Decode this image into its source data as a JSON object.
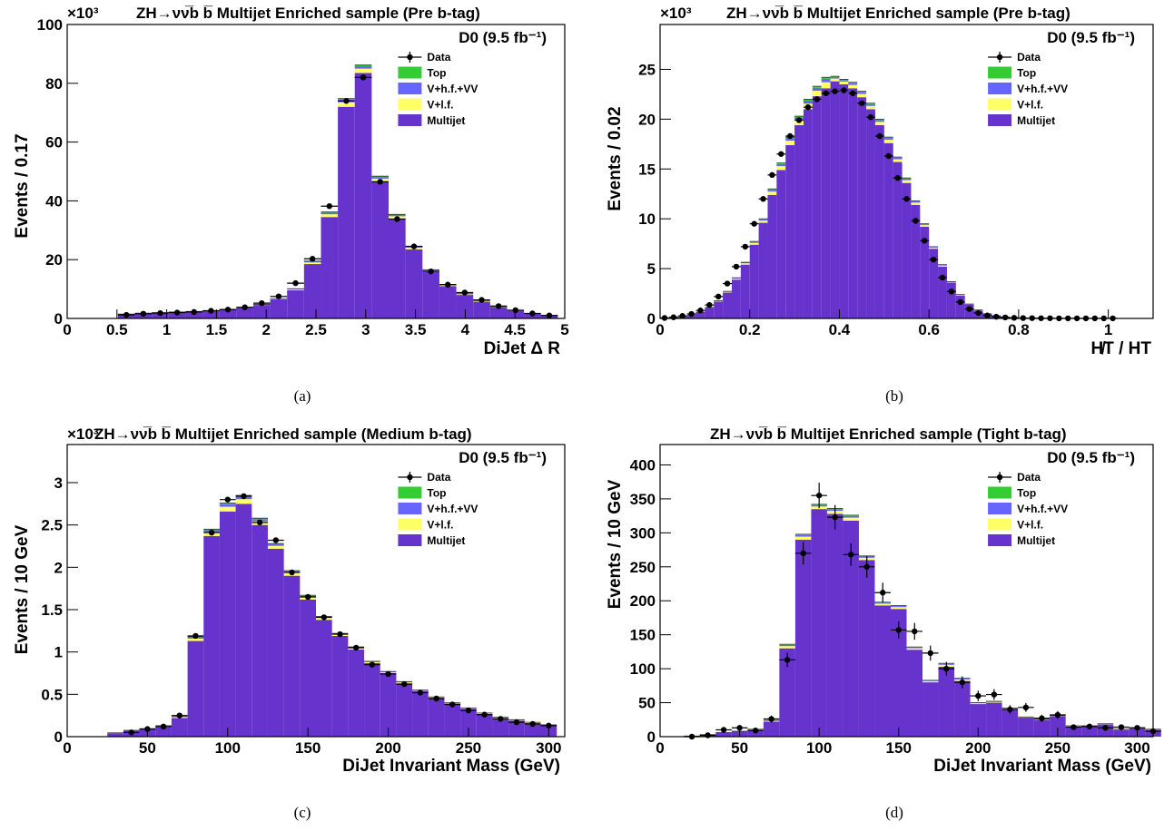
{
  "colors": {
    "multijet": "#6633cc",
    "vlf": "#ffff66",
    "vhfvv": "#6666ff",
    "top": "#33cc33",
    "data": "#000000"
  },
  "legend": [
    "Data",
    "Top",
    "V+h.f.+VV",
    "V+l.f.",
    "Multijet"
  ],
  "experiment": "D0 (9.5 fb⁻¹)",
  "chart_data": [
    {
      "type": "bar",
      "panel": "a",
      "caption": "(a)",
      "title": "ZH→νν̅b b̅ Multijet Enriched sample (Pre b-tag)",
      "xlabel": "DiJet Δ R",
      "ylabel": "Events / 0.17",
      "yscale_label": "×10³",
      "xlim": [
        0,
        5
      ],
      "ylim": [
        0,
        100
      ],
      "xticks": [
        0,
        0.5,
        1,
        1.5,
        2,
        2.5,
        3,
        3.5,
        4,
        4.5,
        5
      ],
      "xtick_labels": [
        "0",
        "0.5",
        "1",
        "1.5",
        "2",
        "2.5",
        "3",
        "3.5",
        "4",
        "4.5",
        "5"
      ],
      "yticks": [
        0,
        20,
        40,
        60,
        80,
        100
      ],
      "ytick_labels": [
        "0",
        "20",
        "40",
        "60",
        "80",
        "100"
      ],
      "bin_edges": [
        0.51,
        0.68,
        0.85,
        1.02,
        1.19,
        1.36,
        1.53,
        1.7,
        1.87,
        2.04,
        2.21,
        2.38,
        2.55,
        2.72,
        2.89,
        3.06,
        3.23,
        3.4,
        3.57,
        3.74,
        3.91,
        4.08,
        4.25,
        4.42,
        4.59,
        4.76,
        4.93
      ],
      "multijet": [
        1.4,
        1.7,
        1.9,
        2.1,
        2.3,
        2.6,
        3.0,
        3.6,
        4.6,
        6.5,
        9.6,
        18.5,
        34.5,
        72.0,
        83.5,
        46.5,
        34.0,
        23.5,
        15.8,
        11.0,
        8.0,
        5.6,
        3.8,
        2.6,
        1.6,
        1.0
      ],
      "total_mc": [
        1.5,
        1.8,
        2.0,
        2.2,
        2.4,
        2.7,
        3.1,
        3.7,
        4.8,
        6.8,
        10.1,
        19.5,
        36.2,
        74.8,
        86.2,
        48.4,
        35.4,
        24.6,
        16.6,
        11.6,
        8.4,
        5.9,
        4.0,
        2.7,
        1.7,
        1.05
      ],
      "data_y": [
        1.2,
        1.6,
        1.8,
        2.0,
        2.2,
        2.6,
        3.0,
        3.8,
        5.2,
        7.5,
        12.0,
        20.3,
        38.2,
        74.0,
        82.0,
        46.5,
        33.8,
        24.5,
        16.0,
        11.5,
        8.8,
        6.3,
        4.2,
        2.8,
        1.7,
        1.0
      ]
    },
    {
      "type": "bar",
      "panel": "b",
      "caption": "(b)",
      "title": "ZH→νν̅b b̅ Multijet Enriched sample (Pre b-tag)",
      "xlabel": "H̸T / HT",
      "ylabel": "Events / 0.02",
      "yscale_label": "×10³",
      "xlim": [
        0,
        1.1
      ],
      "ylim": [
        0,
        29.5
      ],
      "xticks": [
        0,
        0.2,
        0.4,
        0.6,
        0.8,
        1
      ],
      "xtick_labels": [
        "0",
        "0.2",
        "0.4",
        "0.6",
        "0.8",
        "1"
      ],
      "yticks": [
        0,
        5,
        10,
        15,
        20,
        25
      ],
      "ytick_labels": [
        "0",
        "5",
        "10",
        "15",
        "20",
        "25"
      ],
      "bin_edges": [
        0.0,
        0.02,
        0.04,
        0.06,
        0.08,
        0.1,
        0.12,
        0.14,
        0.16,
        0.18,
        0.2,
        0.22,
        0.24,
        0.26,
        0.28,
        0.3,
        0.32,
        0.34,
        0.36,
        0.38,
        0.4,
        0.42,
        0.44,
        0.46,
        0.48,
        0.5,
        0.52,
        0.54,
        0.56,
        0.58,
        0.6,
        0.62,
        0.64,
        0.66,
        0.68,
        0.7,
        0.72,
        0.74,
        0.76,
        0.78,
        0.8,
        0.82,
        0.84,
        0.86,
        0.88,
        0.9,
        0.92,
        0.94,
        0.96,
        0.98,
        1.0,
        1.02
      ],
      "multijet": [
        0.02,
        0.05,
        0.12,
        0.3,
        0.6,
        1.05,
        1.7,
        2.6,
        3.9,
        5.4,
        7.4,
        9.6,
        12.4,
        14.9,
        17.4,
        19.4,
        21.0,
        22.3,
        23.1,
        23.8,
        23.5,
        23.1,
        22.2,
        21.0,
        19.4,
        17.6,
        15.7,
        13.6,
        11.4,
        9.2,
        7.0,
        5.2,
        3.6,
        2.3,
        1.4,
        0.8,
        0.45,
        0.25,
        0.14,
        0.08,
        0.05,
        0.03,
        0.02,
        0.01,
        0.01,
        0.01,
        0.0,
        0.0,
        0.0,
        0.0,
        0.0
      ],
      "total_mc": [
        0.02,
        0.05,
        0.13,
        0.31,
        0.63,
        1.1,
        1.78,
        2.72,
        4.08,
        5.64,
        7.73,
        10.0,
        13.0,
        15.6,
        18.2,
        20.3,
        22.0,
        23.3,
        24.2,
        24.3,
        24.0,
        23.7,
        22.8,
        21.6,
        20.0,
        18.2,
        16.2,
        14.1,
        11.8,
        9.5,
        7.2,
        5.4,
        3.7,
        2.4,
        1.45,
        0.85,
        0.47,
        0.27,
        0.15,
        0.09,
        0.05,
        0.03,
        0.02,
        0.01,
        0.01,
        0.01,
        0.0,
        0.0,
        0.0,
        0.0,
        0.0
      ],
      "data_y": [
        0.05,
        0.12,
        0.25,
        0.45,
        0.8,
        1.35,
        2.2,
        3.5,
        5.2,
        7.2,
        9.5,
        12.0,
        14.4,
        16.5,
        18.3,
        19.9,
        21.2,
        22.0,
        22.6,
        22.8,
        22.9,
        22.6,
        21.6,
        20.2,
        18.3,
        16.3,
        14.1,
        12.0,
        9.8,
        7.8,
        5.9,
        4.1,
        2.7,
        1.65,
        0.95,
        0.55,
        0.3,
        0.17,
        0.1,
        0.06,
        0.04,
        0.03,
        0.02,
        0.02,
        0.01,
        0.01,
        0.01,
        0.01,
        0.01,
        0.01,
        0.01
      ]
    },
    {
      "type": "bar",
      "panel": "c",
      "caption": "(c)",
      "title": "ZH→νν̅b b̅ Multijet Enriched sample (Medium b-tag)",
      "xlabel": "DiJet Invariant Mass (GeV)",
      "ylabel": "Events / 10 GeV",
      "yscale_label": "×10³",
      "xlim": [
        0,
        310
      ],
      "ylim": [
        0,
        3.45
      ],
      "xticks": [
        0,
        50,
        100,
        150,
        200,
        250,
        300
      ],
      "xtick_labels": [
        "0",
        "50",
        "100",
        "150",
        "200",
        "250",
        "300"
      ],
      "yticks": [
        0,
        0.5,
        1,
        1.5,
        2,
        2.5,
        3
      ],
      "ytick_labels": [
        "0",
        "0.5",
        "1",
        "1.5",
        "2",
        "2.5",
        "3"
      ],
      "bin_edges": [
        25,
        35,
        45,
        55,
        65,
        75,
        85,
        95,
        105,
        115,
        125,
        135,
        145,
        155,
        165,
        175,
        185,
        195,
        205,
        215,
        225,
        235,
        245,
        255,
        265,
        275,
        285,
        295,
        305
      ],
      "multijet": [
        0.04,
        0.07,
        0.09,
        0.12,
        0.22,
        1.13,
        2.37,
        2.66,
        2.75,
        2.5,
        2.22,
        1.9,
        1.62,
        1.38,
        1.19,
        1.03,
        0.87,
        0.75,
        0.63,
        0.54,
        0.46,
        0.39,
        0.33,
        0.27,
        0.22,
        0.19,
        0.16,
        0.13
      ],
      "total_mc": [
        0.045,
        0.075,
        0.095,
        0.13,
        0.24,
        1.18,
        2.45,
        2.76,
        2.85,
        2.58,
        2.28,
        1.96,
        1.67,
        1.42,
        1.22,
        1.06,
        0.89,
        0.77,
        0.65,
        0.55,
        0.47,
        0.4,
        0.34,
        0.28,
        0.23,
        0.2,
        0.17,
        0.14
      ],
      "data_y": [
        0.0,
        0.05,
        0.09,
        0.12,
        0.25,
        1.19,
        2.41,
        2.8,
        2.84,
        2.53,
        2.32,
        1.94,
        1.65,
        1.41,
        1.21,
        1.05,
        0.85,
        0.74,
        0.62,
        0.52,
        0.45,
        0.38,
        0.31,
        0.26,
        0.21,
        0.17,
        0.15,
        0.13
      ],
      "data_bins_start": 1
    },
    {
      "type": "bar",
      "panel": "d",
      "caption": "(d)",
      "title": "ZH→νν̅b b̅ Multijet Enriched sample (Tight b-tag)",
      "xlabel": "DiJet Invariant Mass (GeV)",
      "ylabel": "Events / 10 GeV",
      "yscale_label": "",
      "xlim": [
        0,
        310
      ],
      "ylim": [
        0,
        430
      ],
      "xticks": [
        0,
        50,
        100,
        150,
        200,
        250,
        300
      ],
      "xtick_labels": [
        "0",
        "50",
        "100",
        "150",
        "200",
        "250",
        "300"
      ],
      "yticks": [
        0,
        50,
        100,
        150,
        200,
        250,
        300,
        350,
        400
      ],
      "ytick_labels": [
        "0",
        "50",
        "100",
        "150",
        "200",
        "250",
        "300",
        "350",
        "400"
      ],
      "bin_edges": [
        15,
        25,
        35,
        45,
        55,
        65,
        75,
        85,
        95,
        105,
        115,
        125,
        135,
        145,
        155,
        165,
        175,
        185,
        195,
        205,
        215,
        225,
        235,
        245,
        255,
        265,
        275,
        285,
        295,
        305,
        315
      ],
      "multijet": [
        1,
        3,
        6,
        8,
        10,
        22,
        130,
        290,
        335,
        328,
        318,
        260,
        193,
        188,
        128,
        80,
        103,
        82,
        48,
        50,
        40,
        28,
        25,
        30,
        15,
        15,
        18,
        10,
        12,
        10
      ],
      "total_mc": [
        1,
        3,
        6,
        8,
        11,
        24,
        136,
        298,
        342,
        336,
        326,
        266,
        198,
        193,
        132,
        83,
        108,
        86,
        50,
        52,
        42,
        29,
        26,
        31,
        16,
        16,
        19,
        11,
        13,
        11
      ],
      "data_y": [
        0,
        2,
        10,
        13,
        9,
        26,
        113,
        270,
        355,
        323,
        268,
        250,
        212,
        157,
        155,
        123,
        100,
        80,
        60,
        62,
        40,
        43,
        27,
        32,
        14,
        15,
        13,
        14,
        13,
        8
      ],
      "data_err": [
        0,
        1.5,
        3.2,
        3.6,
        3,
        5.1,
        10.6,
        16.4,
        18.8,
        18,
        16.4,
        15.8,
        14.6,
        12.5,
        12.4,
        11.1,
        10,
        8.9,
        7.7,
        7.9,
        6.3,
        6.6,
        5.2,
        5.7,
        3.7,
        3.9,
        3.6,
        3.7,
        3.6,
        2.8
      ]
    }
  ]
}
